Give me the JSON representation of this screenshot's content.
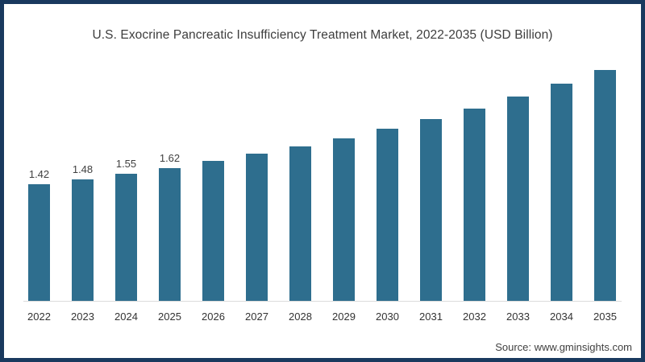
{
  "title": "U.S. Exocrine Pancreatic Insufficiency Treatment Market, 2022-2035 (USD Billion)",
  "source": "Source: www.gminsights.com",
  "colors": {
    "bar": "#2E6E8E",
    "frame_border": "#19395E",
    "background": "#FFFFFF",
    "title_text": "#3D3D3D",
    "axis_line": "#DCDCDC",
    "data_label_text": "#404040",
    "year_label_text": "#333333",
    "source_text": "#404040"
  },
  "chart_data": {
    "type": "bar",
    "title": "U.S. Exocrine Pancreatic Insufficiency Treatment Market, 2022-2035 (USD Billion)",
    "unit": "USD Billion",
    "categories": [
      "2022",
      "2023",
      "2024",
      "2025",
      "2026",
      "2027",
      "2028",
      "2029",
      "2030",
      "2031",
      "2032",
      "2033",
      "2034",
      "2035"
    ],
    "values": [
      1.42,
      1.48,
      1.55,
      1.62,
      1.7,
      1.79,
      1.88,
      1.98,
      2.1,
      2.21,
      2.34,
      2.49,
      2.64,
      2.81
    ],
    "data_labels": [
      "1.42",
      "1.48",
      "1.55",
      "1.62",
      "",
      "",
      "",
      "",
      "",
      "",
      "",
      "",
      "",
      ""
    ],
    "xlabel": "",
    "ylabel": "",
    "ylim": [
      0,
      3.05
    ],
    "grid": false,
    "legend": false,
    "y_axis_shown": false
  }
}
